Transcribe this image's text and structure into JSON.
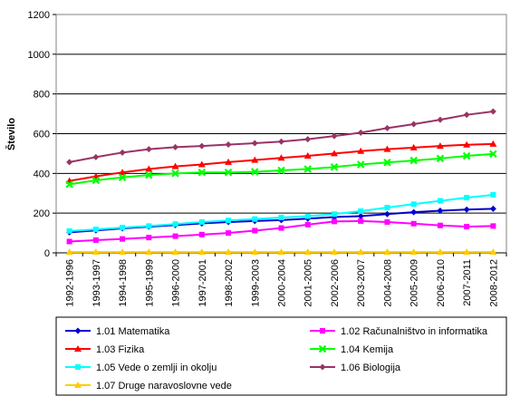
{
  "chart_data": {
    "type": "line",
    "title": "",
    "xlabel": "",
    "ylabel": "Število",
    "ylim": [
      0,
      1200
    ],
    "yticks": [
      0,
      200,
      400,
      600,
      800,
      1000,
      1200
    ],
    "grid": true,
    "legend_position": "bottom",
    "categories": [
      "1992-1996",
      "1993-1997",
      "1994-1998",
      "1995-1999",
      "1996-2000",
      "1997-2001",
      "1998-2002",
      "1999-2003",
      "2000-2004",
      "2001-2005",
      "2002-2006",
      "2003-2007",
      "2004-2008",
      "2005-2009",
      "2006-2010",
      "2007-2011",
      "2008-2012"
    ],
    "series": [
      {
        "name": "1.01 Matematika",
        "color": "#0000CC",
        "marker": "diamond",
        "values": [
          103,
          113,
          123,
          132,
          140,
          148,
          155,
          160,
          165,
          172,
          180,
          185,
          195,
          205,
          212,
          218,
          222
        ]
      },
      {
        "name": "1.02 Računalništvo in informatika",
        "color": "#FF00FF",
        "marker": "square",
        "values": [
          57,
          64,
          70,
          77,
          84,
          92,
          100,
          112,
          125,
          142,
          158,
          160,
          155,
          147,
          138,
          132,
          135
        ]
      },
      {
        "name": "1.03 Fizika",
        "color": "#FF0000",
        "marker": "triangle",
        "values": [
          362,
          385,
          405,
          422,
          435,
          445,
          457,
          467,
          478,
          488,
          500,
          512,
          522,
          530,
          538,
          544,
          548
        ]
      },
      {
        "name": "1.04 Kemija",
        "color": "#00FF00",
        "marker": "cross",
        "values": [
          345,
          365,
          380,
          392,
          400,
          405,
          405,
          408,
          415,
          422,
          432,
          445,
          455,
          465,
          475,
          488,
          498
        ]
      },
      {
        "name": "1.05 Vede o zemlji in okolju",
        "color": "#00FFFF",
        "marker": "square",
        "values": [
          110,
          118,
          127,
          135,
          145,
          155,
          163,
          170,
          178,
          185,
          195,
          210,
          228,
          245,
          262,
          278,
          292
        ]
      },
      {
        "name": "1.06 Biologija",
        "color": "#993366",
        "marker": "diamond",
        "values": [
          457,
          482,
          505,
          522,
          532,
          538,
          545,
          552,
          560,
          572,
          588,
          605,
          628,
          648,
          670,
          695,
          712
        ]
      },
      {
        "name": "1.07 Druge naravoslovne vede",
        "color": "#FFCC00",
        "marker": "triangle",
        "values": [
          4,
          4,
          4,
          4,
          4,
          4,
          4,
          4,
          4,
          4,
          4,
          4,
          4,
          4,
          4,
          4,
          4
        ]
      }
    ]
  }
}
